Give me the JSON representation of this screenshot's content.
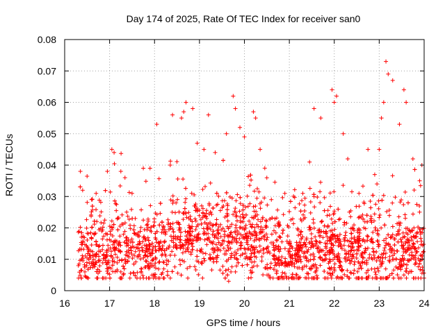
{
  "chart_data": {
    "type": "scatter",
    "title": "Day 174 of 2025, Rate Of TEC Index for receiver san0",
    "xlabel": "GPS time / hours",
    "ylabel": "ROTI / TECUs",
    "xlim": [
      16,
      24
    ],
    "ylim": [
      0,
      0.08
    ],
    "xticks": [
      16,
      17,
      18,
      19,
      20,
      21,
      22,
      23,
      24
    ],
    "yticks": [
      0,
      0.01,
      0.02,
      0.03,
      0.04,
      0.05,
      0.06,
      0.07,
      0.08
    ],
    "xtick_labels": [
      "16",
      "17",
      "18",
      "19",
      "20",
      "21",
      "22",
      "23",
      "24"
    ],
    "ytick_labels": [
      "0",
      "0.01",
      "0.02",
      "0.03",
      "0.04",
      "0.05",
      "0.06",
      "0.07",
      "0.08"
    ],
    "grid": true,
    "marker": "+",
    "color": "#ff0000",
    "series": [
      {
        "name": "ROTI",
        "points": [
          [
            16.35,
            0.038
          ],
          [
            16.4,
            0.032
          ],
          [
            16.6,
            0.029
          ],
          [
            16.7,
            0.031
          ],
          [
            16.95,
            0.038
          ],
          [
            17.05,
            0.045
          ],
          [
            17.1,
            0.044
          ],
          [
            17.25,
            0.038
          ],
          [
            17.5,
            0.031
          ],
          [
            17.75,
            0.039
          ],
          [
            17.9,
            0.039
          ],
          [
            18.05,
            0.053
          ],
          [
            18.35,
            0.04
          ],
          [
            18.4,
            0.056
          ],
          [
            18.6,
            0.055
          ],
          [
            18.65,
            0.057
          ],
          [
            18.7,
            0.06
          ],
          [
            18.85,
            0.058
          ],
          [
            18.95,
            0.047
          ],
          [
            19.1,
            0.045
          ],
          [
            19.2,
            0.056
          ],
          [
            19.35,
            0.044
          ],
          [
            19.6,
            0.05
          ],
          [
            19.75,
            0.062
          ],
          [
            19.8,
            0.058
          ],
          [
            19.9,
            0.052
          ],
          [
            20.0,
            0.049
          ],
          [
            20.2,
            0.057
          ],
          [
            20.25,
            0.055
          ],
          [
            20.35,
            0.045
          ],
          [
            20.6,
            0.029
          ],
          [
            20.9,
            0.031
          ],
          [
            21.3,
            0.031
          ],
          [
            21.45,
            0.041
          ],
          [
            21.55,
            0.058
          ],
          [
            21.7,
            0.055
          ],
          [
            21.95,
            0.064
          ],
          [
            22.0,
            0.06
          ],
          [
            22.05,
            0.062
          ],
          [
            22.2,
            0.05
          ],
          [
            22.3,
            0.042
          ],
          [
            22.55,
            0.031
          ],
          [
            22.75,
            0.045
          ],
          [
            22.9,
            0.037
          ],
          [
            22.95,
            0.034
          ],
          [
            23.0,
            0.045
          ],
          [
            23.05,
            0.055
          ],
          [
            23.1,
            0.06
          ],
          [
            23.15,
            0.073
          ],
          [
            23.2,
            0.069
          ],
          [
            23.3,
            0.067
          ],
          [
            23.45,
            0.053
          ],
          [
            23.55,
            0.064
          ],
          [
            23.6,
            0.06
          ],
          [
            23.75,
            0.042
          ],
          [
            23.9,
            0.035
          ],
          [
            23.95,
            0.04
          ],
          [
            19.65,
            0.003
          ],
          [
            19.7,
            0.006
          ],
          [
            21.95,
            0.005
          ],
          [
            23.55,
            0.005
          ],
          [
            16.45,
            0.006
          ],
          [
            17.25,
            0.006
          ]
        ]
      }
    ],
    "noise": {
      "x_range": [
        16.3,
        24.0
      ],
      "baseline": 0.0125,
      "spread": 0.0065,
      "count": 2400
    }
  }
}
